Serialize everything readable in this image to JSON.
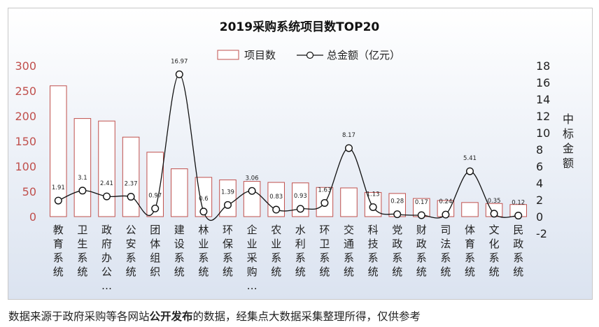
{
  "chart_data": {
    "type": "bar",
    "title": "2019采购系统项目数TOP20",
    "categories": [
      "教育系统",
      "卫生系统",
      "政府办公…",
      "公安系统",
      "团体组织",
      "建设系统",
      "林业系统",
      "环保系统",
      "企业采购…",
      "农业系统",
      "水利系统",
      "环卫系统",
      "交通系统",
      "科技系统",
      "党政系统",
      "财政系统",
      "司法系统",
      "体育系统",
      "文化系统",
      "民政系统"
    ],
    "series": [
      {
        "name": "项目数",
        "type": "bar",
        "axis": "left",
        "values": [
          260,
          195,
          190,
          158,
          128,
          95,
          78,
          73,
          70,
          68,
          67,
          58,
          57,
          48,
          46,
          36,
          32,
          28,
          26,
          24
        ]
      },
      {
        "name": "总金额（亿元）",
        "type": "line",
        "axis": "right",
        "values": [
          1.91,
          3.1,
          2.41,
          2.37,
          0.97,
          16.97,
          0.6,
          1.39,
          3.06,
          0.83,
          0.93,
          1.63,
          8.17,
          1.13,
          0.28,
          0.17,
          0.24,
          5.41,
          0.35,
          0.12
        ],
        "labels": [
          "1.91",
          "3.1",
          "2.41",
          "2.37",
          "0.97",
          "16.97",
          "0.6",
          "1.39",
          "3.06",
          "0.83",
          "0.93",
          "1.63",
          "8.17",
          "1.13",
          "0.28",
          "0.17",
          "0.24",
          "5.41",
          "0.35",
          "0.12"
        ]
      }
    ],
    "y_left": {
      "min": 0,
      "max": 300,
      "step": 50,
      "ticks": [
        "0",
        "50",
        "100",
        "150",
        "200",
        "250",
        "300"
      ]
    },
    "y_right": {
      "min": -2,
      "max": 18,
      "step": 2,
      "ticks": [
        "-2",
        "0",
        "2",
        "4",
        "6",
        "8",
        "10",
        "12",
        "14",
        "16",
        "18"
      ],
      "label_chars": [
        "中",
        "标",
        "金",
        "额"
      ]
    },
    "legend": {
      "position": "top",
      "bar_label": "项目数",
      "line_label": "总金额（亿元）"
    },
    "colors": {
      "bar_fill": "#ffffff",
      "bar_stroke": "#c0504d",
      "line": "#111111",
      "left_axis_text": "#c0504d",
      "right_axis_text": "#222222",
      "plot_bg_top": "#ffffff",
      "plot_bg_bottom": "#dbe3f0"
    }
  },
  "footnote": {
    "before": "数据来源于政府采购等各网站",
    "bold": "公开发布",
    "after": "的数据，经集点大数据采集整理所得，仅供参考"
  }
}
